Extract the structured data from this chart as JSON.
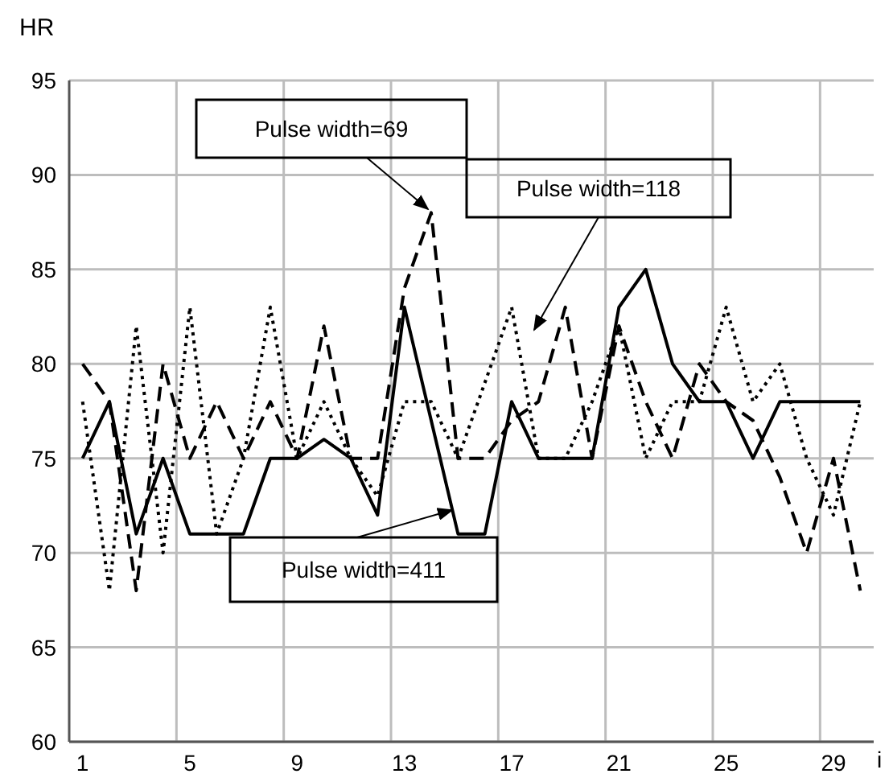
{
  "chart_data": {
    "type": "line",
    "xlabel": "i",
    "ylabel": "HR",
    "categories": [
      "1",
      null,
      null,
      null,
      "5",
      null,
      null,
      null,
      "9",
      null,
      null,
      null,
      "13",
      null,
      null,
      null,
      "17",
      null,
      null,
      null,
      "21",
      null,
      null,
      null,
      "25",
      null,
      null,
      null,
      "29",
      null
    ],
    "series": [
      {
        "name": "Pulse width=69",
        "color": "#000000",
        "line_style": "dashed",
        "values": [
          80,
          78,
          68,
          80,
          75,
          78,
          75,
          78,
          75,
          82,
          75,
          75,
          84,
          88,
          75,
          75,
          77,
          78,
          83,
          75,
          82,
          78,
          75,
          80,
          78,
          77,
          74,
          70,
          75,
          68
        ]
      },
      {
        "name": "Pulse width=118",
        "color": "#000000",
        "line_style": "dotted",
        "values": [
          78,
          68,
          82,
          70,
          83,
          71,
          75,
          83,
          75,
          78,
          75,
          73,
          78,
          78,
          75,
          79,
          83,
          75,
          75,
          78,
          82,
          75,
          78,
          78,
          83,
          78,
          80,
          75,
          72,
          78
        ]
      },
      {
        "name": "Pulse width=411",
        "color": "#000000",
        "line_style": "solid",
        "values": [
          75,
          78,
          71,
          75,
          71,
          71,
          71,
          75,
          75,
          76,
          75,
          72,
          83,
          77,
          71,
          71,
          78,
          75,
          75,
          75,
          83,
          85,
          80,
          78,
          78,
          75,
          78,
          78,
          78,
          78
        ]
      }
    ],
    "ylim": [
      60,
      95
    ],
    "yticks": [
      60,
      65,
      70,
      75,
      80,
      85,
      90,
      95
    ],
    "grid": true,
    "marker": "none"
  }
}
